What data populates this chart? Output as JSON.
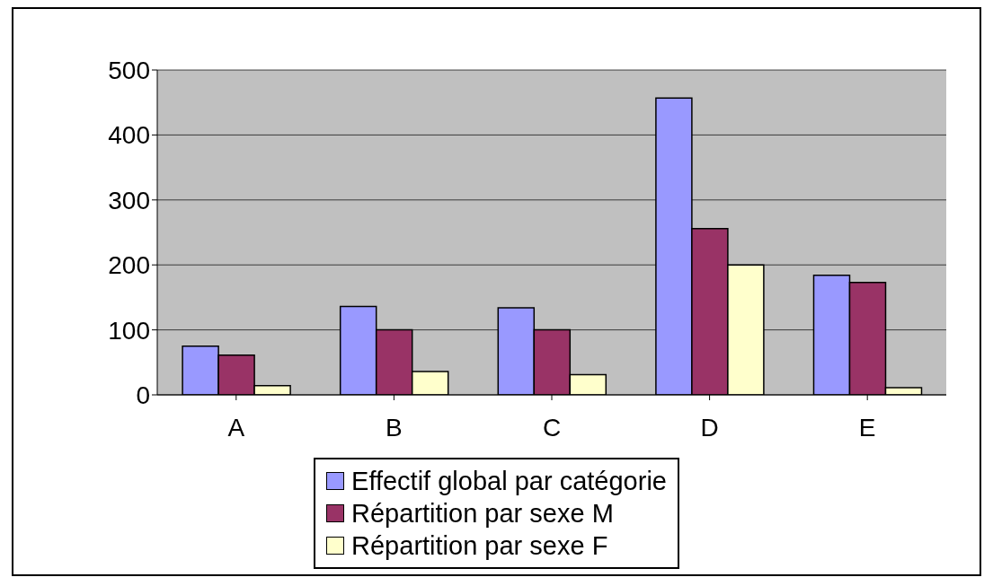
{
  "chart_data": {
    "type": "bar",
    "categories": [
      "A",
      "B",
      "C",
      "D",
      "E"
    ],
    "series": [
      {
        "name": "Effectif global par catégorie",
        "color": "#9999ff",
        "values": [
          75,
          136,
          134,
          457,
          184
        ]
      },
      {
        "name": "Répartition par sexe M",
        "color": "#993366",
        "values": [
          61,
          100,
          100,
          256,
          173
        ]
      },
      {
        "name": "Répartition par sexe F",
        "color": "#ffffcc",
        "values": [
          14,
          36,
          31,
          200,
          11
        ]
      }
    ],
    "ylim": [
      0,
      500
    ],
    "yticks": [
      0,
      100,
      200,
      300,
      400,
      500
    ],
    "grid": "y",
    "legend": "bottom"
  }
}
